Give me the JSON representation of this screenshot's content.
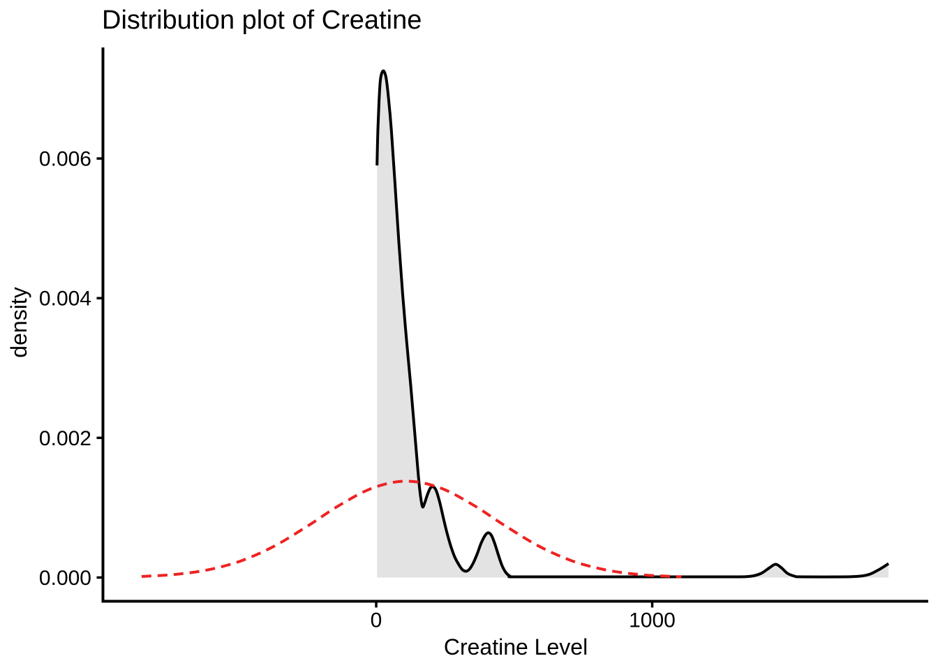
{
  "figure": {
    "background": "#FFFFFF",
    "axis_color": "#000000",
    "text_color": "#000000"
  },
  "chart_data": {
    "type": "area",
    "title": "Distribution plot of Creatine",
    "xlabel": "Creatine Level",
    "ylabel": "density",
    "xlim": [
      -990,
      2000
    ],
    "ylim": [
      -0.00034,
      0.00759
    ],
    "grid": false,
    "legend_position": "none",
    "xticks": [
      {
        "v": 0,
        "label": "0"
      },
      {
        "v": 1000,
        "label": "1000"
      }
    ],
    "yticks": [
      {
        "v": 0,
        "label": "0.000"
      },
      {
        "v": 0.002,
        "label": "0.002"
      },
      {
        "v": 0.004,
        "label": "0.004"
      },
      {
        "v": 0.006,
        "label": "0.006"
      }
    ],
    "series": [
      {
        "name": "creatine-kde-density",
        "kind": "area",
        "stroke": "#000000",
        "fill": "#E3E3E3",
        "dashed": false,
        "points": [
          [
            3,
            0.0059
          ],
          [
            6,
            0.0064
          ],
          [
            10,
            0.0068
          ],
          [
            15,
            0.00712
          ],
          [
            21,
            0.00723
          ],
          [
            28,
            0.00725
          ],
          [
            36,
            0.00715
          ],
          [
            45,
            0.00685
          ],
          [
            55,
            0.0064
          ],
          [
            68,
            0.00565
          ],
          [
            82,
            0.0048
          ],
          [
            96,
            0.00405
          ],
          [
            110,
            0.0034
          ],
          [
            125,
            0.00275
          ],
          [
            138,
            0.00215
          ],
          [
            150,
            0.00158
          ],
          [
            158,
            0.00125
          ],
          [
            167,
            0.00102
          ],
          [
            175,
            0.00106
          ],
          [
            185,
            0.00118
          ],
          [
            196,
            0.00128
          ],
          [
            207,
            0.0013
          ],
          [
            218,
            0.00124
          ],
          [
            230,
            0.00108
          ],
          [
            243,
            0.00086
          ],
          [
            257,
            0.00063
          ],
          [
            271,
            0.00044
          ],
          [
            285,
            0.00029
          ],
          [
            300,
            0.00018
          ],
          [
            313,
            0.00011
          ],
          [
            326,
            9e-05
          ],
          [
            338,
            0.00012
          ],
          [
            352,
            0.00021
          ],
          [
            366,
            0.00034
          ],
          [
            380,
            0.00049
          ],
          [
            394,
            0.0006
          ],
          [
            406,
            0.00064
          ],
          [
            418,
            0.0006
          ],
          [
            430,
            0.00048
          ],
          [
            443,
            0.00032
          ],
          [
            456,
            0.00017
          ],
          [
            470,
            7e-05
          ],
          [
            485,
            2e-05
          ],
          [
            500,
            1e-05
          ],
          [
            700,
            1e-05
          ],
          [
            900,
            1e-05
          ],
          [
            1100,
            1e-05
          ],
          [
            1300,
            1e-05
          ],
          [
            1360,
            2e-05
          ],
          [
            1395,
            6e-05
          ],
          [
            1425,
            0.00014
          ],
          [
            1447,
            0.00019
          ],
          [
            1468,
            0.00014
          ],
          [
            1490,
            6e-05
          ],
          [
            1515,
            2e-05
          ],
          [
            1540,
            1e-05
          ],
          [
            1700,
            1e-05
          ],
          [
            1755,
            2e-05
          ],
          [
            1790,
            5e-05
          ],
          [
            1820,
            0.00011
          ],
          [
            1845,
            0.00017
          ],
          [
            1856,
            0.0002
          ]
        ]
      },
      {
        "name": "normal-reference-curve",
        "kind": "line",
        "stroke": "#EE2222",
        "fill": null,
        "dashed": true,
        "mean": 110,
        "sd": 320,
        "peak_density": 0.00138,
        "points": [
          [
            -850,
            1.5e-05
          ],
          [
            -730,
            4.4e-05
          ],
          [
            -610,
            0.00011
          ],
          [
            -490,
            0.000238
          ],
          [
            -370,
            0.000448
          ],
          [
            -250,
            0.000733
          ],
          [
            -130,
            0.001042
          ],
          [
            -10,
            0.001286
          ],
          [
            110,
            0.00138
          ],
          [
            230,
            0.001286
          ],
          [
            350,
            0.001042
          ],
          [
            470,
            0.000733
          ],
          [
            590,
            0.000448
          ],
          [
            710,
            0.000238
          ],
          [
            830,
            0.00011
          ],
          [
            950,
            4.4e-05
          ],
          [
            1070,
            1.53e-05
          ],
          [
            1106,
            1.2e-05
          ]
        ]
      }
    ]
  }
}
